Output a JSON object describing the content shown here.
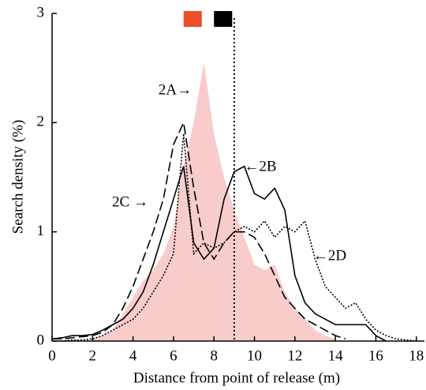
{
  "chart_data": {
    "type": "line",
    "xlabel": "Distance from point of release (m)",
    "ylabel": "Search density (%)",
    "x": [
      0,
      0.5,
      1,
      1.5,
      2,
      2.5,
      3,
      3.5,
      4,
      4.5,
      5,
      5.5,
      6,
      6.5,
      7,
      7.5,
      8,
      8.5,
      9,
      9.5,
      10,
      10.5,
      11,
      11.5,
      12,
      12.5,
      13,
      13.5,
      14,
      14.5,
      15,
      15.5,
      16,
      16.5,
      17,
      17.5,
      18
    ],
    "series": [
      {
        "name": "2A",
        "style": "area",
        "color": "#f9cccc",
        "values": [
          null,
          null,
          null,
          null,
          0.02,
          0.05,
          0.1,
          0.25,
          0.4,
          0.55,
          0.65,
          0.8,
          1.05,
          1.6,
          2.0,
          2.55,
          1.9,
          1.5,
          1.2,
          0.95,
          0.7,
          0.65,
          0.7,
          0.45,
          0.3,
          0.2,
          0.1,
          0.05,
          0.02,
          null,
          null,
          null,
          null,
          null,
          null,
          null,
          null
        ]
      },
      {
        "name": "2C",
        "style": "dashed",
        "color": "#000000",
        "values": [
          0.02,
          0.02,
          0.03,
          0.04,
          0.05,
          0.08,
          0.15,
          0.3,
          0.5,
          0.75,
          1.0,
          1.3,
          1.8,
          2.0,
          1.4,
          0.9,
          0.75,
          0.9,
          1.0,
          1.0,
          0.95,
          0.8,
          0.6,
          0.4,
          0.3,
          0.2,
          0.15,
          0.1,
          0.05,
          0.02,
          null,
          null,
          null,
          null,
          null,
          null,
          null
        ]
      },
      {
        "name": "2B",
        "style": "solid",
        "color": "#000000",
        "values": [
          0.02,
          0.03,
          0.05,
          0.05,
          0.06,
          0.1,
          0.15,
          0.2,
          0.3,
          0.45,
          0.7,
          1.0,
          1.3,
          1.6,
          0.9,
          0.75,
          0.85,
          1.3,
          1.55,
          1.6,
          1.35,
          1.3,
          1.4,
          1.2,
          0.6,
          0.35,
          0.25,
          0.2,
          0.15,
          0.15,
          0.15,
          0.15,
          0.05,
          0.0,
          null,
          null,
          null
        ]
      },
      {
        "name": "2D",
        "style": "dotted",
        "color": "#000000",
        "values": [
          0,
          0,
          0.01,
          0.01,
          0.02,
          0.05,
          0.1,
          0.15,
          0.2,
          0.3,
          0.45,
          0.6,
          0.8,
          1.9,
          0.8,
          0.9,
          0.85,
          0.9,
          1.0,
          1.05,
          1.0,
          1.1,
          0.95,
          1.05,
          1.0,
          1.1,
          0.75,
          0.5,
          0.4,
          0.3,
          0.35,
          0.2,
          0.1,
          0.05,
          0.02,
          0.01,
          0
        ]
      }
    ],
    "annotations": [
      "2A→",
      "←2B",
      "2C →",
      "←2D"
    ],
    "ranges": [
      {
        "start": 6.5,
        "end": 7.4,
        "color": "#e8502a"
      },
      {
        "start": 8.0,
        "end": 8.9,
        "color": "#000000"
      }
    ],
    "vline": 9.0,
    "xlim": [
      0,
      18.4
    ],
    "ylim": [
      0,
      3
    ],
    "xticks": [
      0,
      2,
      4,
      6,
      8,
      10,
      12,
      14,
      16,
      18
    ],
    "yticks": [
      0,
      1,
      2,
      3
    ]
  }
}
